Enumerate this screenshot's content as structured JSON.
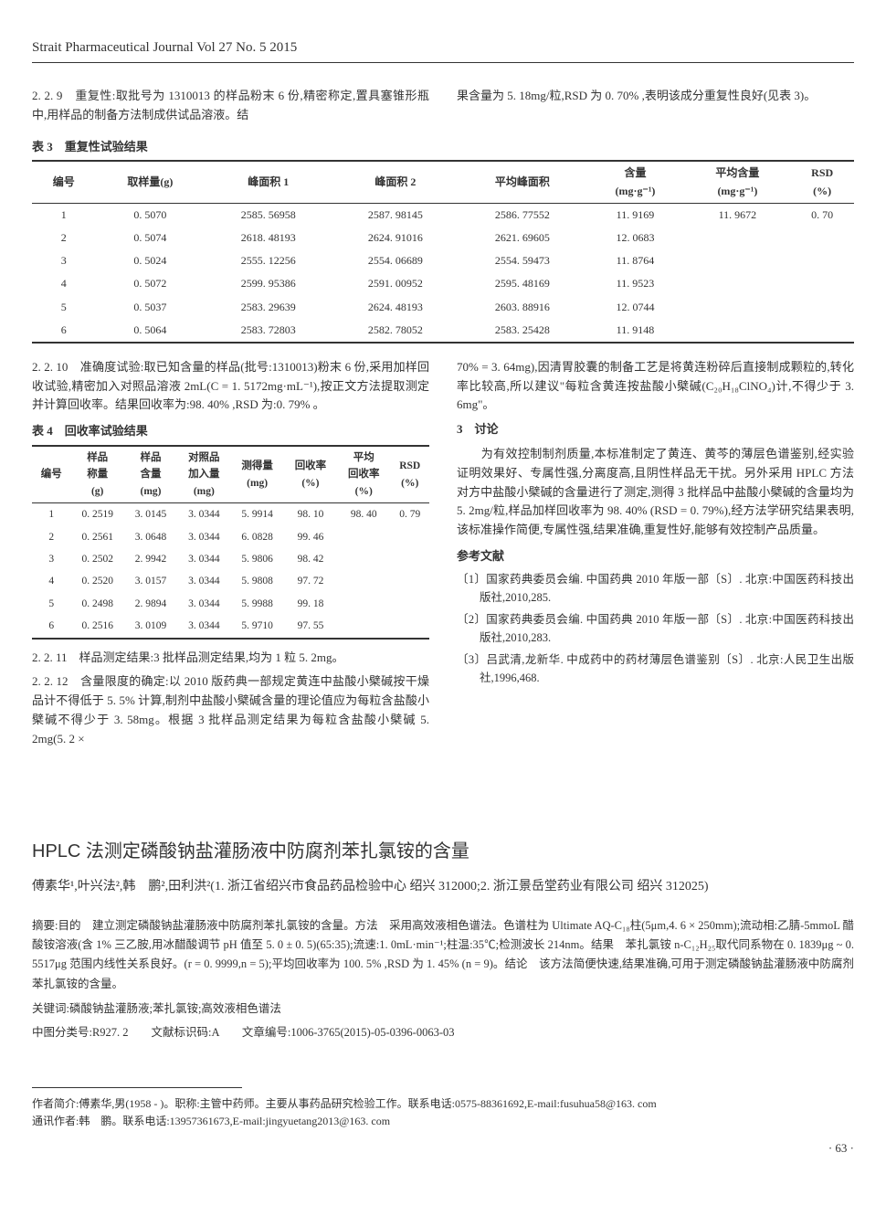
{
  "journal_header": "Strait Pharmaceutical Journal Vol 27 No. 5 2015",
  "section_229": "2. 2. 9　重复性:取批号为 1310013 的样品粉末 6 份,精密称定,置具塞锥形瓶中,用样品的制备方法制成供试品溶液。结",
  "section_229_right": "果含量为 5. 18mg/粒,RSD 为 0. 70% ,表明该成分重复性良好(见表 3)。",
  "table3_title": "表 3　重复性试验结果",
  "table3": {
    "headers": [
      "编号",
      "取样量(g)",
      "峰面积 1",
      "峰面积 2",
      "平均峰面积",
      "含量\n(mg·g⁻¹)",
      "平均含量\n(mg·g⁻¹)",
      "RSD\n(%)"
    ],
    "rows": [
      [
        "1",
        "0. 5070",
        "2585. 56958",
        "2587. 98145",
        "2586. 77552",
        "11. 9169",
        "11. 9672",
        "0. 70"
      ],
      [
        "2",
        "0. 5074",
        "2618. 48193",
        "2624. 91016",
        "2621. 69605",
        "12. 0683",
        "",
        ""
      ],
      [
        "3",
        "0. 5024",
        "2555. 12256",
        "2554. 06689",
        "2554. 59473",
        "11. 8764",
        "",
        ""
      ],
      [
        "4",
        "0. 5072",
        "2599. 95386",
        "2591. 00952",
        "2595. 48169",
        "11. 9523",
        "",
        ""
      ],
      [
        "5",
        "0. 5037",
        "2583. 29639",
        "2624. 48193",
        "2603. 88916",
        "12. 0744",
        "",
        ""
      ],
      [
        "6",
        "0. 5064",
        "2583. 72803",
        "2582. 78052",
        "2583. 25428",
        "11. 9148",
        "",
        ""
      ]
    ]
  },
  "section_2210": "2. 2. 10　准确度试验:取已知含量的样品(批号:1310013)粉末 6 份,采用加样回收试验,精密加入对照品溶液 2mL(C = 1. 5172mg·mL⁻¹),按正文方法提取测定并计算回收率。结果回收率为:98. 40% ,RSD 为:0. 79% 。",
  "table4_title": "表 4　回收率试验结果",
  "table4": {
    "headers": [
      "编号",
      "样品\n称量\n(g)",
      "样品\n含量\n(mg)",
      "对照品\n加入量\n(mg)",
      "测得量\n(mg)",
      "回收率\n(%)",
      "平均\n回收率\n(%)",
      "RSD\n(%)"
    ],
    "rows": [
      [
        "1",
        "0. 2519",
        "3. 0145",
        "3. 0344",
        "5. 9914",
        "98. 10",
        "98. 40",
        "0. 79"
      ],
      [
        "2",
        "0. 2561",
        "3. 0648",
        "3. 0344",
        "6. 0828",
        "99. 46",
        "",
        ""
      ],
      [
        "3",
        "0. 2502",
        "2. 9942",
        "3. 0344",
        "5. 9806",
        "98. 42",
        "",
        ""
      ],
      [
        "4",
        "0. 2520",
        "3. 0157",
        "3. 0344",
        "5. 9808",
        "97. 72",
        "",
        ""
      ],
      [
        "5",
        "0. 2498",
        "2. 9894",
        "3. 0344",
        "5. 9988",
        "99. 18",
        "",
        ""
      ],
      [
        "6",
        "0. 2516",
        "3. 0109",
        "3. 0344",
        "5. 9710",
        "97. 55",
        "",
        ""
      ]
    ]
  },
  "section_2211": "2. 2. 11　样品测定结果:3 批样品测定结果,均为 1 粒 5. 2mg。",
  "section_2212": "2. 2. 12　含量限度的确定:以 2010 版药典一部规定黄连中盐酸小檗碱按干燥品计不得低于 5. 5% 计算,制剂中盐酸小檗碱含量的理论值应为每粒含盐酸小檗碱不得少于 3. 58mg。根据 3 批样品测定结果为每粒含盐酸小檗碱 5. 2mg(5. 2 ×",
  "right_para1": "70% = 3. 64mg),因清胃胶囊的制备工艺是将黄连粉碎后直接制成颗粒的,转化率比较高,所以建议\"每粒含黄连按盐酸小檗碱(C₂₀H₁₈ClNO₄)计,不得少于 3. 6mg\"。",
  "section3_title": "3　讨论",
  "section3_body": "　　为有效控制制剂质量,本标准制定了黄连、黄芩的薄层色谱鉴别,经实验证明效果好、专属性强,分离度高,且阴性样品无干扰。另外采用 HPLC 方法对方中盐酸小檗碱的含量进行了测定,测得 3 批样品中盐酸小檗碱的含量均为 5. 2mg/粒,样品加样回收率为 98. 40% (RSD = 0. 79%),经方法学研究结果表明,该标准操作简便,专属性强,结果准确,重复性好,能够有效控制产品质量。",
  "refs_title": "参考文献",
  "refs": [
    "〔1〕国家药典委员会编. 中国药典 2010 年版一部〔S〕. 北京:中国医药科技出版社,2010,285.",
    "〔2〕国家药典委员会编. 中国药典 2010 年版一部〔S〕. 北京:中国医药科技出版社,2010,283.",
    "〔3〕吕武清,龙新华. 中成药中的药材薄层色谱鉴别〔S〕. 北京:人民卫生出版社,1996,468."
  ],
  "article2": {
    "title": "HPLC 法测定磷酸钠盐灌肠液中防腐剂苯扎氯铵的含量",
    "authors": "傅素华¹,叶兴法²,韩　鹏²,田利洪²(1. 浙江省绍兴市食品药品检验中心 绍兴 312000;2. 浙江景岳堂药业有限公司 绍兴 312025)",
    "abstract": "摘要:目的　建立测定磷酸钠盐灌肠液中防腐剂苯扎氯铵的含量。方法　采用高效液相色谱法。色谱柱为 Ultimate AQ-C₁₈柱(5μm,4. 6 × 250mm);流动相:乙腈-5mmoL 醋酸铵溶液(含 1% 三乙胺,用冰醋酸调节 pH 值至 5. 0 ± 0. 5)(65:35);流速:1. 0mL·min⁻¹;柱温:35℃;检测波长 214nm。结果　苯扎氯铵 n-C₁₂H₂₅取代同系物在 0. 1839μg ~ 0. 5517μg 范围内线性关系良好。(r = 0. 9999,n = 5);平均回收率为 100. 5% ,RSD 为 1. 45% (n = 9)。结论　该方法简便快速,结果准确,可用于测定磷酸钠盐灌肠液中防腐剂苯扎氯铵的含量。",
    "keywords": "关键词:磷酸钠盐灌肠液;苯扎氯铵;高效液相色谱法",
    "classline": "中图分类号:R927. 2　　文献标识码:A　　文章编号:1006-3765(2015)-05-0396-0063-03"
  },
  "footer": {
    "line1": "作者简介:傅素华,男(1958 - )。职称:主管中药师。主要从事药品研究检验工作。联系电话:0575-88361692,E-mail:fusuhua58@163. com",
    "line2": "通讯作者:韩　鹏。联系电话:13957361673,E-mail:jingyuetang2013@163. com"
  },
  "pagenum": "· 63 ·"
}
